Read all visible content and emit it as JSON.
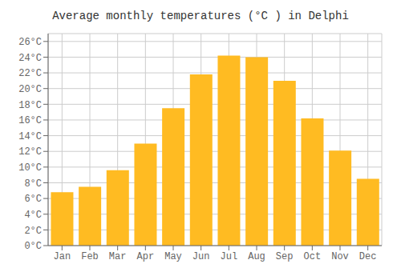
{
  "chart_data": {
    "type": "bar",
    "title": "Average monthly temperatures (°C ) in Delphi",
    "categories": [
      "Jan",
      "Feb",
      "Mar",
      "Apr",
      "May",
      "Jun",
      "Jul",
      "Aug",
      "Sep",
      "Oct",
      "Nov",
      "Dec"
    ],
    "values": [
      6.8,
      7.5,
      9.6,
      13.0,
      17.5,
      21.8,
      24.2,
      24.0,
      21.0,
      16.2,
      12.1,
      8.5
    ],
    "color": "#FFBB22",
    "ylim": [
      0,
      27
    ],
    "yticks": [
      {
        "value": 0,
        "label": "0°C"
      },
      {
        "value": 2,
        "label": "2°C"
      },
      {
        "value": 4,
        "label": "4°C"
      },
      {
        "value": 6,
        "label": "6°C"
      },
      {
        "value": 8,
        "label": "8°C"
      },
      {
        "value": 10,
        "label": "10°C"
      },
      {
        "value": 12,
        "label": "12°C"
      },
      {
        "value": 14,
        "label": "14°C"
      },
      {
        "value": 16,
        "label": "16°C"
      },
      {
        "value": 18,
        "label": "18°C"
      },
      {
        "value": 20,
        "label": "20°C"
      },
      {
        "value": 22,
        "label": "22°C"
      },
      {
        "value": 24,
        "label": "24°C"
      },
      {
        "value": 26,
        "label": "26°C"
      }
    ],
    "grid": true
  }
}
